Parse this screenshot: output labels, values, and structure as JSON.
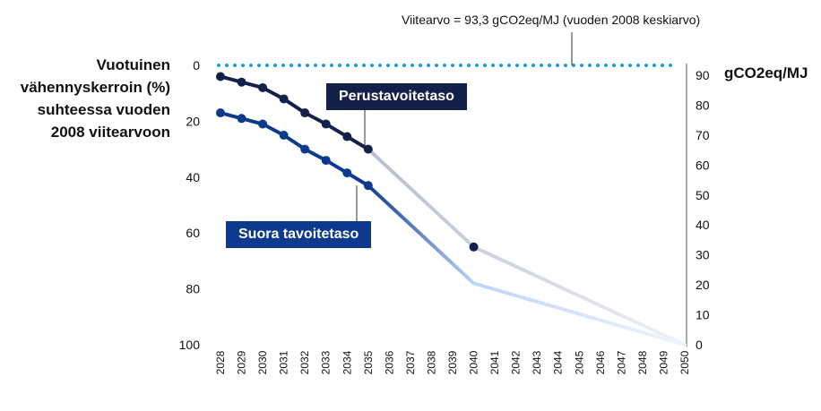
{
  "chart_data": {
    "type": "line",
    "ylabel": "Vuotuinen vähennyskerroin (%) suhteessa vuoden 2008 viitearvoon",
    "ylabel_right": "gCO2eq/MJ",
    "reference_note": "Viitearvo = 93,3 gCO2eq/MJ (vuoden 2008 keskiarvo)",
    "ylim": [
      0,
      100
    ],
    "ylim_right": [
      0,
      93.3
    ],
    "y_ticks": [
      "0",
      "20",
      "40",
      "60",
      "80",
      "100"
    ],
    "y_ticks_right": [
      "90",
      "80",
      "70",
      "60",
      "50",
      "40",
      "30",
      "20",
      "10",
      "0"
    ],
    "x": [
      "2028",
      "2029",
      "2030",
      "2031",
      "2032",
      "2033",
      "2034",
      "2035",
      "2036",
      "2037",
      "2038",
      "2039",
      "2040",
      "2041",
      "2042",
      "2043",
      "2044",
      "2045",
      "2046",
      "2047",
      "2048",
      "2049",
      "2050"
    ],
    "series": [
      {
        "name": "Perustavoitetaso",
        "marked_years": [
          "2028",
          "2029",
          "2030",
          "2031",
          "2032",
          "2033",
          "2034",
          "2035",
          "2040"
        ],
        "marked_values": [
          4,
          6,
          8,
          12,
          17,
          21,
          25.5,
          30,
          65
        ],
        "trend_years": [
          "2035",
          "2040",
          "2050"
        ],
        "trend_values": [
          30,
          65,
          100
        ]
      },
      {
        "name": "Suora tavoitetaso",
        "marked_years": [
          "2028",
          "2029",
          "2030",
          "2031",
          "2032",
          "2033",
          "2034",
          "2035"
        ],
        "marked_values": [
          17,
          19,
          21,
          25,
          30,
          34,
          38.5,
          43
        ],
        "trend_years": [
          "2035",
          "2040",
          "2050"
        ],
        "trend_values": [
          43,
          78,
          100
        ]
      }
    ],
    "reference_line": {
      "value": 0
    }
  },
  "colors": {
    "base": "#13214a",
    "base_light": "#b8bdd0",
    "base_faint": "#eef0f6",
    "direct": "#0d3a8c",
    "direct_light": "#bcd4f6",
    "direct_faint": "#eef4fd",
    "reference": "#1a9fd6"
  }
}
